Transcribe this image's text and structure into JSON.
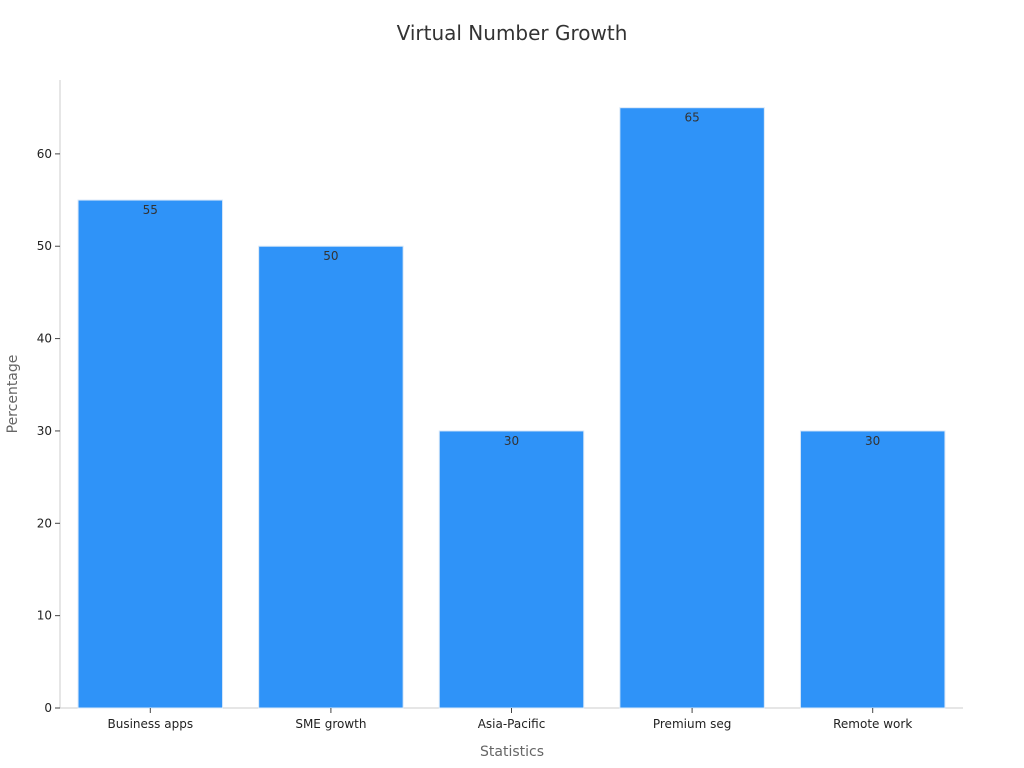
{
  "chart_data": {
    "type": "bar",
    "title": "Virtual Number Growth",
    "xlabel": "Statistics",
    "ylabel": "Percentage",
    "categories": [
      "Business apps",
      "SME growth",
      "Asia-Pacific",
      "Premium seg",
      "Remote work"
    ],
    "values": [
      55,
      50,
      30,
      65,
      30
    ],
    "data_labels": [
      "55",
      "50",
      "30",
      "65",
      "30"
    ],
    "ylim": [
      0,
      68
    ],
    "yticks": [
      0,
      10,
      20,
      30,
      40,
      50,
      60
    ],
    "ytick_labels": [
      "0",
      "10",
      "20",
      "30",
      "40",
      "50",
      "60"
    ],
    "grid": false,
    "legend": "none",
    "bar_color": "#2f93f8"
  }
}
